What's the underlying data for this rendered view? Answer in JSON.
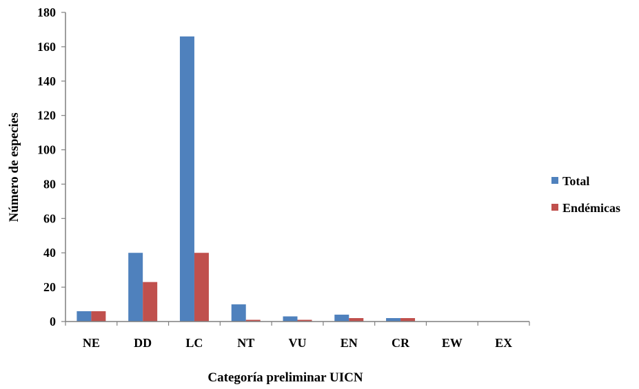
{
  "chart_data": {
    "type": "bar",
    "title": "",
    "xlabel": "Categoría preliminar UICN",
    "ylabel": "Número de especies",
    "categories": [
      "NE",
      "DD",
      "LC",
      "NT",
      "VU",
      "EN",
      "CR",
      "EW",
      "EX"
    ],
    "series": [
      {
        "name": "Total",
        "color": "#4f81bd",
        "values": [
          6,
          40,
          166,
          10,
          3,
          4,
          2,
          0,
          0
        ]
      },
      {
        "name": "Endémicas",
        "color": "#c0504d",
        "values": [
          6,
          23,
          40,
          1,
          1,
          2,
          2,
          0,
          0
        ]
      }
    ],
    "ylim": [
      0,
      180
    ],
    "yticks": [
      "0",
      "20",
      "40",
      "60",
      "80",
      "100",
      "120",
      "140",
      "160",
      "180"
    ],
    "grid": false,
    "legend_position": "right"
  }
}
